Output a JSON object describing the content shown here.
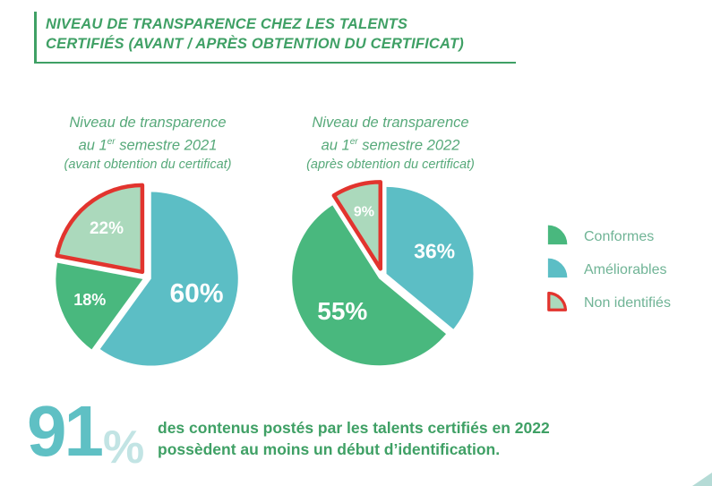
{
  "header": {
    "title_line1": "NIVEAU DE TRANSPARENCE CHEZ LES TALENTS",
    "title_line2": "CERTIFIÉS (AVANT / APRÈS OBTENTION DU CERTIFICAT)"
  },
  "colors": {
    "conformes": "#49B87E",
    "ameliorables": "#5CBEC5",
    "non_identifies": "#ABD9BC",
    "non_identifies_stroke": "#E2342E",
    "header_green": "#3FA065",
    "subtitle_green": "#57A97A",
    "legend_text": "#70B496",
    "big_number": "#5FC0C4",
    "big_percent": "#C2E4E4",
    "corner": "#9CCFC8"
  },
  "chart_data": [
    {
      "type": "pie",
      "title": "Niveau de transparence au 1er semestre 2021",
      "subtitle": "(avant obtention du certificat)",
      "title_lines": {
        "line1": "Niveau de transparence",
        "line2_pre": "au 1",
        "line2_sup": "er",
        "line2_post": " semestre 2021",
        "line3": "(avant obtention du certificat)"
      },
      "unit": "%",
      "slices": [
        {
          "key": "ameliorables",
          "label": "Améliorables",
          "value": 60,
          "color": "#5CBEC5"
        },
        {
          "key": "conformes",
          "label": "Conformes",
          "value": 18,
          "color": "#49B87E"
        },
        {
          "key": "non-identifies",
          "label": "Non identifiés",
          "value": 22,
          "color": "#ABD9BC",
          "stroke": "#E2342E"
        }
      ]
    },
    {
      "type": "pie",
      "title": "Niveau de transparence au 1er semestre 2022",
      "subtitle": "(après obtention du certificat)",
      "title_lines": {
        "line1": "Niveau de transparence",
        "line2_pre": "au 1",
        "line2_sup": "er",
        "line2_post": " semestre 2022",
        "line3": "(après obtention du certificat)"
      },
      "unit": "%",
      "slices": [
        {
          "key": "ameliorables",
          "label": "Améliorables",
          "value": 36,
          "color": "#5CBEC5"
        },
        {
          "key": "conformes",
          "label": "Conformes",
          "value": 55,
          "color": "#49B87E"
        },
        {
          "key": "non-identifies",
          "label": "Non identifiés",
          "value": 9,
          "color": "#ABD9BC",
          "stroke": "#E2342E"
        }
      ]
    }
  ],
  "legend": {
    "items": [
      {
        "key": "conformes",
        "label": "Conformes",
        "color": "#49B87E"
      },
      {
        "key": "ameliorables",
        "label": "Améliorables",
        "color": "#5CBEC5"
      },
      {
        "key": "non-identifies",
        "label": "Non identifiés",
        "color": "#ABD9BC",
        "stroke": "#E2342E"
      }
    ]
  },
  "footer": {
    "stat_value": "91",
    "percent_sign": "%",
    "text_line1": "des contenus postés par les talents certifiés en 2022",
    "text_line2": "possèdent au moins un début d’identification."
  }
}
